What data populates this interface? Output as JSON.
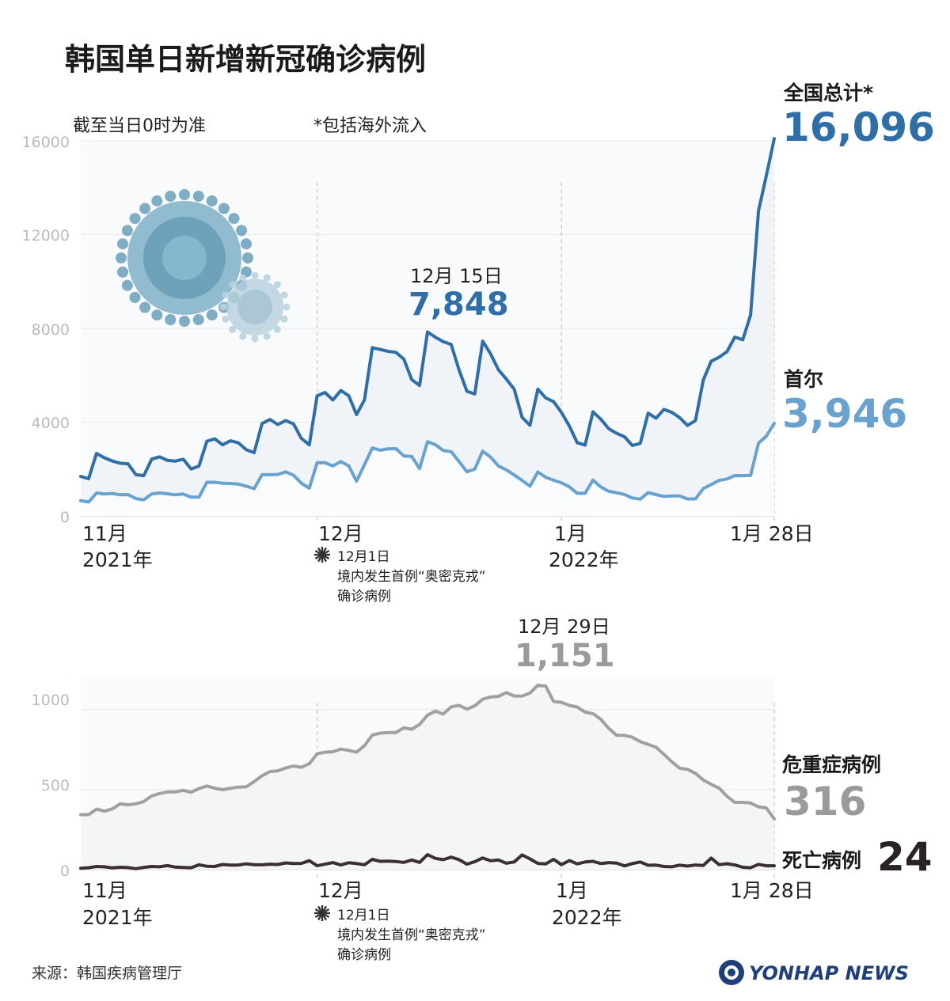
{
  "title": "韩国单日新增新冠确诊病例",
  "notes": {
    "basis": "截至当日0时为准",
    "footnote": "*包括海外流入"
  },
  "colors": {
    "national": "#2f6ea6",
    "seoul": "#6aa2cf",
    "critical": "#a0a0a0",
    "deaths": "#3a3034",
    "guide": "#c8c8c8"
  },
  "x_labels": {
    "nov": "11月",
    "year2021": "2021年",
    "dec": "12月",
    "jan": "1月",
    "year2022": "2022年",
    "end": "1月 28日"
  },
  "annotation": {
    "date": "12月1日",
    "line1": "境内发生首例“奥密克戎”",
    "line2": "确诊病例"
  },
  "top_chart": {
    "peak_date": "12月 15日",
    "peak_value": "7,848",
    "national_label": "全国总计*",
    "national_value": "16,096",
    "seoul_label": "首尔",
    "seoul_value": "3,946",
    "y_ticks": [
      "0",
      "4000",
      "8000",
      "12000",
      "16000"
    ]
  },
  "bottom_chart": {
    "peak_date": "12月 29日",
    "peak_value": "1,151",
    "critical_label": "危重症病例",
    "critical_value": "316",
    "deaths_label": "死亡病例",
    "deaths_value": "24",
    "y_ticks": [
      "0",
      "500",
      "1000"
    ]
  },
  "source": "来源：韩国疾病管理厅",
  "logo": "YONHAP NEWS",
  "chart_data": [
    {
      "type": "line",
      "title": "韩国单日新增新冠确诊病例",
      "x_start": "2021-11-01",
      "x_end": "2022-01-28",
      "ylim": [
        0,
        16000
      ],
      "series": [
        {
          "name": "全国总计*",
          "values": [
            1686,
            1589,
            2667,
            2482,
            2344,
            2248,
            2224,
            1758,
            1719,
            2425,
            2520,
            2368,
            2338,
            2419,
            2006,
            2125,
            3187,
            3292,
            3034,
            3206,
            3120,
            2827,
            2699,
            3938,
            4116,
            3899,
            4068,
            3925,
            3308,
            3032,
            5123,
            5266,
            4944,
            5352,
            5128,
            4325,
            4954,
            7175,
            7102,
            7022,
            6977,
            6689,
            5817,
            5567,
            7848,
            7622,
            7435,
            7314,
            6236,
            5318,
            5202,
            7456,
            6919,
            6233,
            5842,
            5409,
            4207,
            3865,
            5409,
            5037,
            4873,
            4416,
            3833,
            3126,
            3024,
            4443,
            4126,
            3716,
            3525,
            3376,
            3005,
            3096,
            4385,
            4167,
            4542,
            4423,
            4194,
            3857,
            4071,
            5804,
            6603,
            6769,
            7009,
            7630,
            7513,
            8571,
            13012,
            14518,
            16096
          ]
        },
        {
          "name": "首尔",
          "values": [
            655,
            593,
            980,
            935,
            960,
            900,
            910,
            740,
            690,
            940,
            980,
            945,
            900,
            935,
            800,
            800,
            1436,
            1436,
            1394,
            1383,
            1357,
            1269,
            1160,
            1760,
            1757,
            1768,
            1880,
            1735,
            1393,
            1186,
            2267,
            2273,
            2131,
            2320,
            2135,
            1486,
            2189,
            2901,
            2800,
            2862,
            2870,
            2560,
            2536,
            2021,
            3166,
            3037,
            2793,
            2740,
            2327,
            1885,
            1996,
            2764,
            2510,
            2132,
            1967,
            1750,
            1516,
            1269,
            1872,
            1648,
            1523,
            1415,
            1238,
            967,
            964,
            1530,
            1231,
            1050,
            990,
            916,
            763,
            716,
            993,
            913,
            835,
            852,
            851,
            722,
            730,
            1168,
            1339,
            1514,
            1576,
            1720,
            1718,
            1727,
            3103,
            3406,
            3946
          ]
        }
      ]
    },
    {
      "type": "line",
      "x_start": "2021-11-01",
      "x_end": "2022-01-28",
      "ylim": [
        0,
        1200
      ],
      "series": [
        {
          "name": "危重症病例",
          "values": [
            343,
            343,
            378,
            365,
            379,
            411,
            405,
            411,
            425,
            460,
            475,
            485,
            485,
            495,
            483,
            506,
            522,
            508,
            499,
            508,
            515,
            517,
            549,
            586,
            612,
            617,
            634,
            647,
            639,
            661,
            723,
            733,
            736,
            752,
            744,
            733,
            774,
            840,
            852,
            856,
            856,
            885,
            876,
            906,
            964,
            989,
            971,
            1016,
            1025,
            1002,
            1022,
            1063,
            1078,
            1081,
            1105,
            1084,
            1083,
            1102,
            1151,
            1145,
            1050,
            1044,
            1025,
            1015,
            983,
            974,
            938,
            882,
            838,
            838,
            826,
            799,
            781,
            764,
            720,
            673,
            633,
            626,
            601,
            559,
            532,
            509,
            458,
            420,
            420,
            416,
            392,
            385,
            316
          ]
        },
        {
          "name": "死亡病例",
          "values": [
            9,
            12,
            20,
            18,
            11,
            15,
            13,
            6,
            14,
            20,
            18,
            25,
            16,
            14,
            12,
            30,
            21,
            20,
            32,
            28,
            29,
            36,
            31,
            30,
            34,
            32,
            42,
            38,
            39,
            56,
            24,
            34,
            44,
            29,
            43,
            38,
            30,
            64,
            52,
            53,
            51,
            45,
            60,
            45,
            94,
            70,
            62,
            78,
            62,
            34,
            50,
            73,
            56,
            60,
            40,
            48,
            92,
            67,
            39,
            36,
            64,
            31,
            57,
            36,
            48,
            52,
            38,
            44,
            41,
            23,
            38,
            48,
            27,
            28,
            20,
            18,
            28,
            22,
            29,
            26,
            72,
            31,
            37,
            29,
            15,
            12,
            33,
            24,
            24
          ]
        }
      ]
    }
  ]
}
